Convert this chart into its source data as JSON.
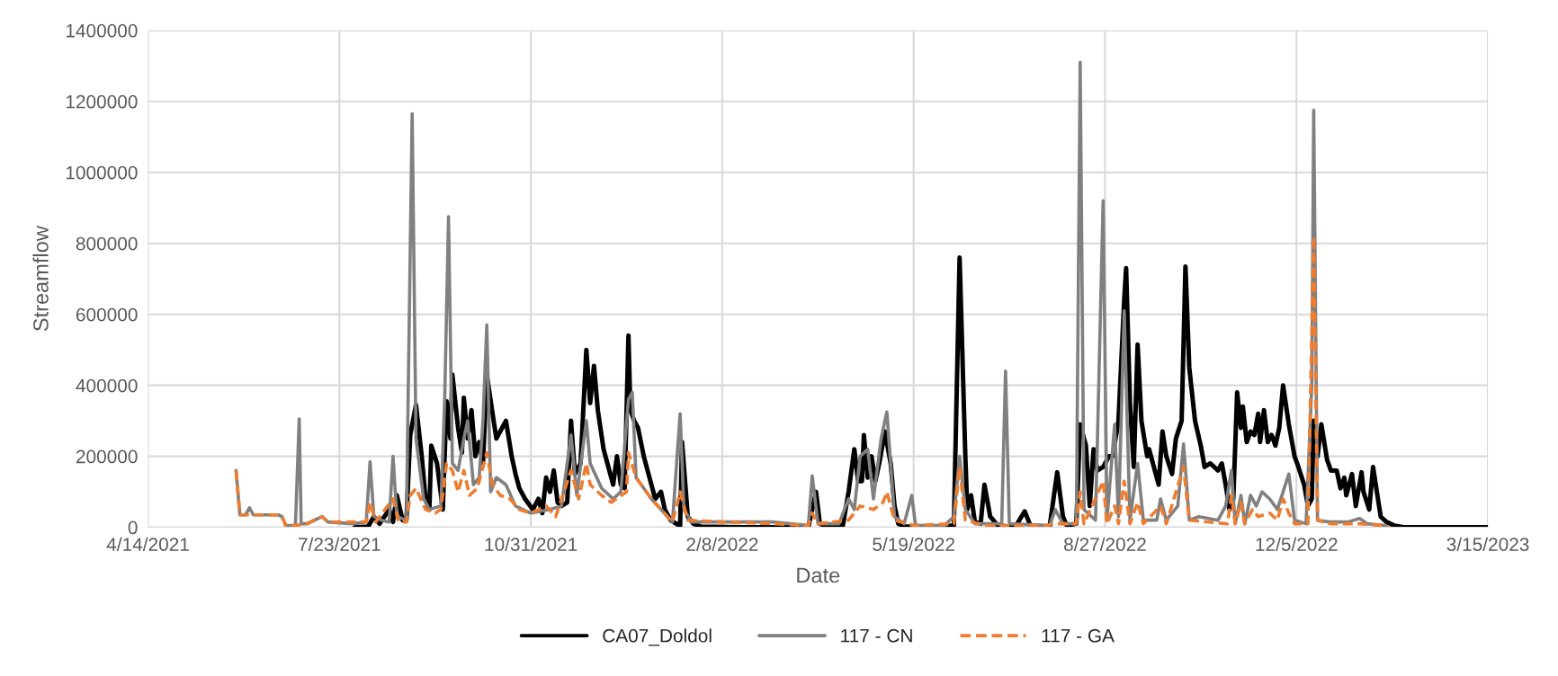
{
  "chart_data": {
    "type": "line",
    "xlabel": "Date",
    "ylabel": "Streamflow",
    "xlim": [
      "2021-04-14",
      "2023-03-15"
    ],
    "xticks": [
      {
        "value": "2021-04-14",
        "label": "4/14/2021"
      },
      {
        "value": "2021-07-23",
        "label": "7/23/2021"
      },
      {
        "value": "2021-10-31",
        "label": "10/31/2021"
      },
      {
        "value": "2022-02-08",
        "label": "2/8/2022"
      },
      {
        "value": "2022-05-19",
        "label": "5/19/2022"
      },
      {
        "value": "2022-08-27",
        "label": "8/27/2022"
      },
      {
        "value": "2022-12-05",
        "label": "12/5/2022"
      },
      {
        "value": "2023-03-15",
        "label": "3/15/2023"
      }
    ],
    "ylim": [
      0,
      1400000
    ],
    "yticks": [
      0,
      200000,
      400000,
      600000,
      800000,
      1000000,
      1200000,
      1400000
    ],
    "grid": true,
    "legend": "bottom",
    "series": [
      {
        "name": "CA07_Doldol",
        "color": "#000000",
        "line_style": "solid",
        "x": [
          "2021-07-31",
          "2021-08-07",
          "2021-08-10",
          "2021-08-13",
          "2021-08-18",
          "2021-08-20",
          "2021-08-22",
          "2021-08-25",
          "2021-08-27",
          "2021-08-29",
          "2021-09-01",
          "2021-09-04",
          "2021-09-06",
          "2021-09-08",
          "2021-09-09",
          "2021-09-12",
          "2021-09-15",
          "2021-09-17",
          "2021-09-19",
          "2021-09-20",
          "2021-09-23",
          "2021-09-25",
          "2021-09-26",
          "2021-09-28",
          "2021-09-30",
          "2021-10-02",
          "2021-10-04",
          "2021-10-06",
          "2021-10-08",
          "2021-10-11",
          "2021-10-13",
          "2021-10-16",
          "2021-10-18",
          "2021-10-21",
          "2021-10-23",
          "2021-10-25",
          "2021-10-28",
          "2021-11-01",
          "2021-11-04",
          "2021-11-06",
          "2021-11-08",
          "2021-11-10",
          "2021-11-12",
          "2021-11-14",
          "2021-11-16",
          "2021-11-19",
          "2021-11-21",
          "2021-11-23",
          "2021-11-26",
          "2021-11-29",
          "2021-12-01",
          "2021-12-03",
          "2021-12-05",
          "2021-12-08",
          "2021-12-10",
          "2021-12-13",
          "2021-12-15",
          "2021-12-17",
          "2021-12-19",
          "2021-12-21",
          "2021-12-22",
          "2021-12-24",
          "2021-12-26",
          "2021-12-29",
          "2022-01-01",
          "2022-01-04",
          "2022-01-07",
          "2022-01-09",
          "2022-01-12",
          "2022-01-15",
          "2022-01-17",
          "2022-01-18",
          "2022-01-21",
          "2022-01-24",
          "2022-01-28",
          "2022-02-18",
          "2022-03-25",
          "2022-03-29",
          "2022-03-31",
          "2022-04-04",
          "2022-04-12",
          "2022-04-15",
          "2022-04-18",
          "2022-04-20",
          "2022-04-22",
          "2022-04-23",
          "2022-04-25",
          "2022-04-27",
          "2022-04-29",
          "2022-05-01",
          "2022-05-04",
          "2022-05-07",
          "2022-05-09",
          "2022-05-11",
          "2022-05-14",
          "2022-05-30",
          "2022-06-09",
          "2022-06-12",
          "2022-06-15",
          "2022-06-16",
          "2022-06-18",
          "2022-06-20",
          "2022-06-23",
          "2022-06-25",
          "2022-06-28",
          "2022-07-02",
          "2022-07-11",
          "2022-07-16",
          "2022-07-19",
          "2022-07-29",
          "2022-08-02",
          "2022-08-05",
          "2022-08-07",
          "2022-08-12",
          "2022-08-14",
          "2022-08-17",
          "2022-08-19",
          "2022-08-21",
          "2022-08-23",
          "2022-08-26",
          "2022-08-29",
          "2022-08-31",
          "2022-09-03",
          "2022-09-06",
          "2022-09-07",
          "2022-09-09",
          "2022-09-11",
          "2022-09-13",
          "2022-09-15",
          "2022-09-18",
          "2022-09-19",
          "2022-09-21",
          "2022-09-24",
          "2022-09-26",
          "2022-09-28",
          "2022-10-01",
          "2022-10-03",
          "2022-10-06",
          "2022-10-08",
          "2022-10-10",
          "2022-10-13",
          "2022-10-16",
          "2022-10-18",
          "2022-10-21",
          "2022-10-25",
          "2022-10-27",
          "2022-10-29",
          "2022-10-31",
          "2022-11-02",
          "2022-11-04",
          "2022-11-06",
          "2022-11-07",
          "2022-11-09",
          "2022-11-11",
          "2022-11-13",
          "2022-11-15",
          "2022-11-16",
          "2022-11-18",
          "2022-11-20",
          "2022-11-22",
          "2022-11-24",
          "2022-11-26",
          "2022-11-28",
          "2022-12-01",
          "2022-12-04",
          "2022-12-06",
          "2022-12-09",
          "2022-12-11",
          "2022-12-13",
          "2022-12-14",
          "2022-12-16",
          "2022-12-18",
          "2022-12-21",
          "2022-12-23",
          "2022-12-26",
          "2022-12-28",
          "2022-12-30",
          "2022-12-31",
          "2023-01-03",
          "2023-01-05",
          "2023-01-08",
          "2023-01-09",
          "2023-01-12",
          "2023-01-14",
          "2023-01-16",
          "2023-01-18",
          "2023-01-21",
          "2023-01-25",
          "2023-01-30",
          "2023-03-15"
        ],
        "values": [
          0,
          2000,
          30000,
          10000,
          50000,
          15000,
          90000,
          20000,
          20000,
          260000,
          345000,
          200000,
          80000,
          50000,
          230000,
          180000,
          50000,
          355000,
          250000,
          430000,
          280000,
          210000,
          365000,
          250000,
          330000,
          200000,
          240000,
          180000,
          430000,
          320000,
          250000,
          280000,
          300000,
          200000,
          150000,
          110000,
          80000,
          50000,
          80000,
          40000,
          140000,
          100000,
          160000,
          70000,
          60000,
          70000,
          300000,
          150000,
          180000,
          500000,
          350000,
          455000,
          330000,
          220000,
          180000,
          120000,
          200000,
          120000,
          110000,
          540000,
          330000,
          300000,
          280000,
          200000,
          140000,
          80000,
          100000,
          50000,
          20000,
          10000,
          5000,
          240000,
          30000,
          10000,
          2000,
          0,
          0,
          100000,
          10000,
          2000,
          5000,
          100000,
          220000,
          130000,
          130000,
          260000,
          140000,
          200000,
          130000,
          180000,
          270000,
          180000,
          60000,
          10000,
          3000,
          0,
          5000,
          760000,
          200000,
          50000,
          90000,
          15000,
          10000,
          120000,
          30000,
          5000,
          0,
          45000,
          5000,
          0,
          155000,
          30000,
          5000,
          10000,
          290000,
          230000,
          60000,
          220000,
          160000,
          170000,
          200000,
          200000,
          300000,
          640000,
          730000,
          350000,
          170000,
          515000,
          300000,
          200000,
          220000,
          180000,
          120000,
          270000,
          200000,
          150000,
          250000,
          300000,
          735000,
          450000,
          300000,
          230000,
          170000,
          180000,
          160000,
          180000,
          120000,
          50000,
          80000,
          380000,
          280000,
          340000,
          240000,
          270000,
          260000,
          320000,
          240000,
          330000,
          240000,
          260000,
          230000,
          280000,
          400000,
          290000,
          200000,
          170000,
          120000,
          60000,
          80000,
          300000,
          200000,
          290000,
          190000,
          160000,
          160000,
          110000,
          140000,
          90000,
          150000,
          60000,
          155000,
          100000,
          50000,
          170000,
          100000,
          30000,
          15000,
          5000,
          0,
          0
        ]
      },
      {
        "name": "117 - CN",
        "color": "#808080",
        "line_style": "solid",
        "x": [
          "2021-05-30",
          "2021-06-01",
          "2021-06-04",
          "2021-06-06",
          "2021-06-08",
          "2021-06-21",
          "2021-06-23",
          "2021-06-25",
          "2021-06-30",
          "2021-07-02",
          "2021-07-03",
          "2021-07-06",
          "2021-07-14",
          "2021-07-17",
          "2021-07-30",
          "2021-08-06",
          "2021-08-08",
          "2021-08-10",
          "2021-08-14",
          "2021-08-18",
          "2021-08-20",
          "2021-08-22",
          "2021-08-27",
          "2021-08-30",
          "2021-09-01",
          "2021-09-05",
          "2021-09-08",
          "2021-09-14",
          "2021-09-16",
          "2021-09-18",
          "2021-09-20",
          "2021-09-23",
          "2021-09-26",
          "2021-09-28",
          "2021-10-01",
          "2021-10-04",
          "2021-10-06",
          "2021-10-08",
          "2021-10-10",
          "2021-10-13",
          "2021-10-18",
          "2021-10-23",
          "2021-10-31",
          "2021-11-10",
          "2021-11-16",
          "2021-11-21",
          "2021-11-24",
          "2021-11-29",
          "2021-12-01",
          "2021-12-07",
          "2021-12-13",
          "2021-12-17",
          "2021-12-21",
          "2021-12-23",
          "2021-12-25",
          "2022-01-02",
          "2022-01-13",
          "2022-01-17",
          "2022-01-19",
          "2022-01-23",
          "2022-02-08",
          "2022-03-06",
          "2022-03-25",
          "2022-03-27",
          "2022-03-30",
          "2022-04-10",
          "2022-04-15",
          "2022-04-18",
          "2022-04-21",
          "2022-04-25",
          "2022-04-28",
          "2022-05-02",
          "2022-05-05",
          "2022-05-09",
          "2022-05-14",
          "2022-05-18",
          "2022-05-20",
          "2022-06-04",
          "2022-06-09",
          "2022-06-12",
          "2022-06-15",
          "2022-06-20",
          "2022-07-04",
          "2022-07-06",
          "2022-07-08",
          "2022-07-29",
          "2022-08-01",
          "2022-08-05",
          "2022-08-12",
          "2022-08-14",
          "2022-08-16",
          "2022-08-22",
          "2022-08-26",
          "2022-08-28",
          "2022-09-01",
          "2022-09-03",
          "2022-09-06",
          "2022-09-09",
          "2022-09-13",
          "2022-09-16",
          "2022-09-23",
          "2022-09-25",
          "2022-09-28",
          "2022-10-04",
          "2022-10-07",
          "2022-10-10",
          "2022-10-15",
          "2022-10-25",
          "2022-10-29",
          "2022-11-01",
          "2022-11-03",
          "2022-11-06",
          "2022-11-08",
          "2022-11-11",
          "2022-11-14",
          "2022-11-17",
          "2022-11-21",
          "2022-11-25",
          "2022-11-28",
          "2022-12-01",
          "2022-12-04",
          "2022-12-10",
          "2022-12-13",
          "2022-12-14",
          "2022-12-16",
          "2022-12-22",
          "2023-01-01",
          "2023-01-07",
          "2023-01-11",
          "2023-01-20",
          "2023-01-22"
        ],
        "values": [
          160000,
          35000,
          35000,
          55000,
          35000,
          35000,
          30000,
          5000,
          5000,
          305000,
          10000,
          10000,
          30000,
          15000,
          10000,
          15000,
          185000,
          30000,
          20000,
          15000,
          200000,
          30000,
          20000,
          1165000,
          250000,
          80000,
          50000,
          60000,
          360000,
          875000,
          180000,
          160000,
          250000,
          300000,
          120000,
          140000,
          300000,
          570000,
          100000,
          140000,
          120000,
          60000,
          40000,
          50000,
          60000,
          260000,
          90000,
          300000,
          180000,
          110000,
          80000,
          100000,
          360000,
          380000,
          140000,
          80000,
          15000,
          320000,
          50000,
          15000,
          15000,
          15000,
          5000,
          145000,
          10000,
          10000,
          80000,
          50000,
          200000,
          220000,
          80000,
          250000,
          325000,
          30000,
          10000,
          90000,
          5000,
          5000,
          30000,
          200000,
          50000,
          10000,
          10000,
          440000,
          10000,
          5000,
          50000,
          10000,
          10000,
          1310000,
          50000,
          20000,
          920000,
          20000,
          290000,
          30000,
          610000,
          20000,
          180000,
          20000,
          20000,
          80000,
          20000,
          60000,
          235000,
          20000,
          30000,
          20000,
          60000,
          160000,
          10000,
          90000,
          10000,
          90000,
          60000,
          100000,
          80000,
          50000,
          100000,
          150000,
          20000,
          10000,
          400000,
          1175000,
          20000,
          15000,
          15000,
          25000,
          10000,
          5000,
          0
        ]
      },
      {
        "name": "117 - GA",
        "color": "#ed7d31",
        "line_style": "dashed",
        "x": [
          "2021-05-30",
          "2021-06-01",
          "2021-06-21",
          "2021-06-23",
          "2021-06-25",
          "2021-06-30",
          "2021-07-06",
          "2021-07-14",
          "2021-07-17",
          "2021-08-06",
          "2021-08-08",
          "2021-08-11",
          "2021-08-20",
          "2021-08-23",
          "2021-08-27",
          "2021-08-29",
          "2021-09-01",
          "2021-09-06",
          "2021-09-11",
          "2021-09-14",
          "2021-09-17",
          "2021-09-20",
          "2021-09-23",
          "2021-09-26",
          "2021-09-29",
          "2021-10-03",
          "2021-10-08",
          "2021-10-11",
          "2021-10-15",
          "2021-10-20",
          "2021-10-25",
          "2021-10-31",
          "2021-11-08",
          "2021-11-13",
          "2021-11-21",
          "2021-11-25",
          "2021-11-29",
          "2021-12-01",
          "2021-12-07",
          "2021-12-12",
          "2021-12-20",
          "2021-12-21",
          "2021-12-25",
          "2022-01-02",
          "2022-01-13",
          "2022-01-17",
          "2022-01-21",
          "2022-02-08",
          "2022-03-06",
          "2022-03-25",
          "2022-03-27",
          "2022-03-30",
          "2022-04-15",
          "2022-04-21",
          "2022-04-28",
          "2022-05-03",
          "2022-05-05",
          "2022-05-09",
          "2022-05-19",
          "2022-06-09",
          "2022-06-12",
          "2022-06-15",
          "2022-06-25",
          "2022-07-27",
          "2022-08-01",
          "2022-08-12",
          "2022-08-14",
          "2022-08-16",
          "2022-08-26",
          "2022-08-28",
          "2022-09-01",
          "2022-09-03",
          "2022-09-06",
          "2022-09-09",
          "2022-09-13",
          "2022-09-16",
          "2022-09-25",
          "2022-09-28",
          "2022-10-07",
          "2022-10-10",
          "2022-10-30",
          "2022-11-01",
          "2022-11-03",
          "2022-11-06",
          "2022-11-08",
          "2022-11-12",
          "2022-11-15",
          "2022-11-21",
          "2022-11-25",
          "2022-11-28",
          "2022-12-01",
          "2022-12-04",
          "2022-12-11",
          "2022-12-14",
          "2022-12-16",
          "2022-12-22",
          "2023-01-01",
          "2023-01-07",
          "2023-01-20",
          "2023-01-22"
        ],
        "values": [
          160000,
          35000,
          35000,
          30000,
          5000,
          5000,
          10000,
          30000,
          15000,
          15000,
          70000,
          15000,
          80000,
          15000,
          15000,
          90000,
          110000,
          50000,
          40000,
          50000,
          180000,
          160000,
          100000,
          160000,
          90000,
          110000,
          210000,
          120000,
          90000,
          80000,
          50000,
          40000,
          60000,
          30000,
          160000,
          80000,
          180000,
          120000,
          90000,
          70000,
          100000,
          210000,
          140000,
          80000,
          15000,
          100000,
          20000,
          15000,
          10000,
          5000,
          40000,
          10000,
          20000,
          60000,
          50000,
          70000,
          100000,
          20000,
          5000,
          10000,
          170000,
          20000,
          5000,
          5000,
          10000,
          10000,
          100000,
          10000,
          130000,
          10000,
          60000,
          10000,
          130000,
          10000,
          70000,
          10000,
          60000,
          10000,
          170000,
          20000,
          10000,
          90000,
          10000,
          70000,
          10000,
          50000,
          30000,
          40000,
          20000,
          80000,
          40000,
          10000,
          10000,
          820000,
          20000,
          10000,
          10000,
          10000,
          5000,
          0
        ]
      }
    ]
  }
}
